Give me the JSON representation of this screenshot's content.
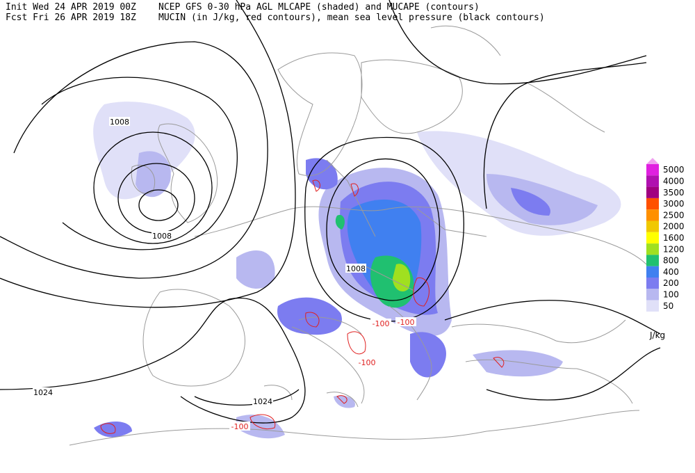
{
  "header": {
    "init": "Init  Wed 24 APR 2019 00Z",
    "fcst": "Fcst Fri 26 APR 2019 18Z",
    "title_line1": "NCEP GFS 0-30 hPa AGL MLCAPE (shaded) and MUCAPE (contours)",
    "title_line2": "MUCIN (in J/kg, red contours), mean sea level pressure (black contours)"
  },
  "legend": {
    "levels": [
      {
        "label": "5000",
        "color": "#e020e0"
      },
      {
        "label": "4000",
        "color": "#b010b0"
      },
      {
        "label": "3500",
        "color": "#a00080"
      },
      {
        "label": "3000",
        "color": "#ff5000"
      },
      {
        "label": "2500",
        "color": "#ff9000"
      },
      {
        "label": "2000",
        "color": "#f0c800"
      },
      {
        "label": "1600",
        "color": "#ffff00"
      },
      {
        "label": "1200",
        "color": "#a0e020"
      },
      {
        "label": "800",
        "color": "#20c070"
      },
      {
        "label": "400",
        "color": "#4080f0"
      },
      {
        "label": "200",
        "color": "#7c7cf0"
      },
      {
        "label": "100",
        "color": "#b8b8f0"
      },
      {
        "label": "50",
        "color": "#e0e0f8"
      }
    ],
    "top_color": "#f0a0f0",
    "unit": "J/kg"
  },
  "contour_labels": {
    "pressure": [
      "1008",
      "1008",
      "1008",
      "1024",
      "1024"
    ],
    "mucin": [
      "-100",
      "-100",
      "-100",
      "-100"
    ]
  }
}
